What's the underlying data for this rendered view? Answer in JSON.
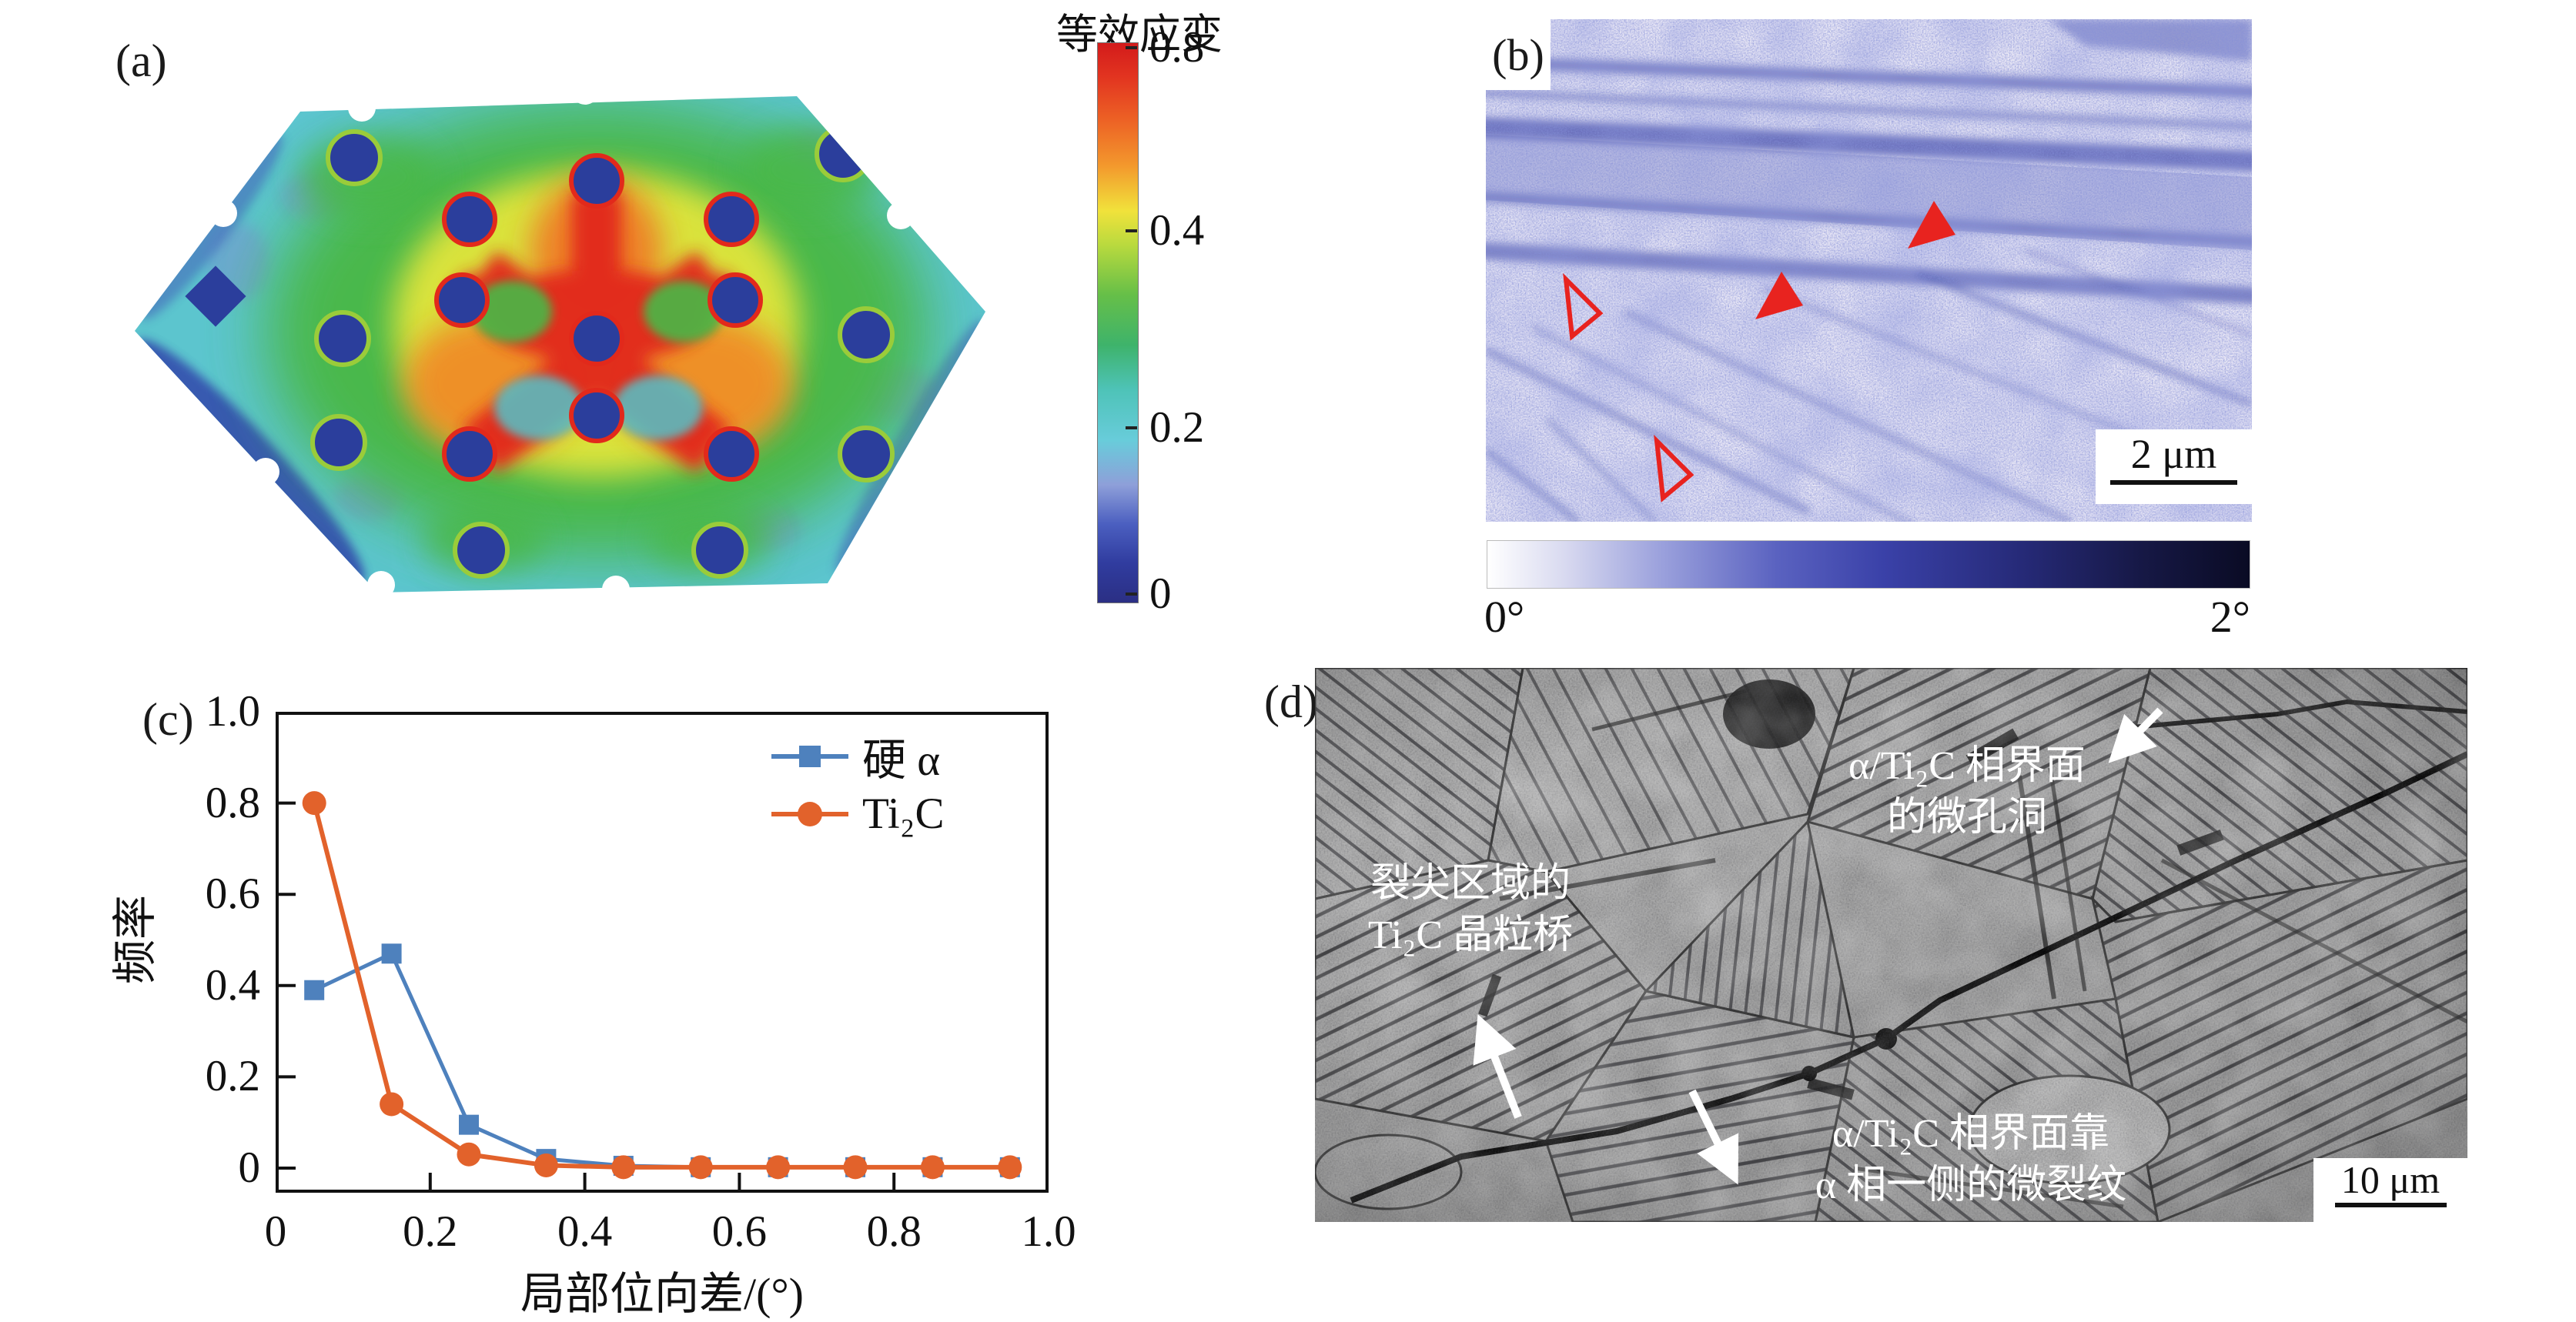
{
  "panels": {
    "a": {
      "label": "(a)",
      "colorbar": {
        "title": "等效应变",
        "ticks": [
          "0.8",
          "0.4",
          "0.2",
          "0"
        ]
      }
    },
    "b": {
      "label": "(b)",
      "scale_bar": "2 μm",
      "colorbar": {
        "left": "0°",
        "right": "2°"
      },
      "marker_color": "#e8231f"
    },
    "c": {
      "label": "(c)"
    },
    "d": {
      "label": "(d)",
      "scale_bar": "10 μm",
      "annotations": {
        "interface_void_line1": "α/Ti₂C 相界面",
        "interface_void_line2": "的微孔洞",
        "bridge_line1": "裂尖区域的",
        "bridge_line2": "Ti₂C 晶粒桥",
        "microcrack_line1": "α/Ti₂C 相界面靠",
        "microcrack_line2": "α 相一侧的微裂纹"
      }
    }
  },
  "chart_data": {
    "type": "line",
    "title": "",
    "xlabel": "局部位向差/(°)",
    "ylabel": "频率",
    "xlim": [
      0,
      1.0
    ],
    "ylim": [
      0,
      1.0
    ],
    "grid": false,
    "legend_position": "upper right",
    "x": [
      0.05,
      0.15,
      0.25,
      0.35,
      0.45,
      0.55,
      0.65,
      0.75,
      0.85,
      0.95
    ],
    "series": [
      {
        "name": "硬 α",
        "marker": "square",
        "color": "#4e81bd",
        "values": [
          0.39,
          0.47,
          0.095,
          0.02,
          0.005,
          0.002,
          0.002,
          0.002,
          0.002,
          0.002
        ]
      },
      {
        "name": "Ti₂C",
        "marker": "circle",
        "color": "#e2622b",
        "values": [
          0.8,
          0.14,
          0.03,
          0.006,
          0.002,
          0.002,
          0.002,
          0.002,
          0.002,
          0.002
        ]
      }
    ],
    "x_ticks": [
      {
        "v": 0,
        "label": "0"
      },
      {
        "v": 0.2,
        "label": "0.2"
      },
      {
        "v": 0.4,
        "label": "0.4"
      },
      {
        "v": 0.6,
        "label": "0.6"
      },
      {
        "v": 0.8,
        "label": "0.8"
      },
      {
        "v": 1.0,
        "label": "1.0"
      }
    ],
    "y_ticks": [
      {
        "v": 0,
        "label": "0"
      },
      {
        "v": 0.2,
        "label": "0.2"
      },
      {
        "v": 0.4,
        "label": "0.4"
      },
      {
        "v": 0.6,
        "label": "0.6"
      },
      {
        "v": 0.8,
        "label": "0.8"
      },
      {
        "v": 1.0,
        "label": "1.0"
      }
    ]
  }
}
